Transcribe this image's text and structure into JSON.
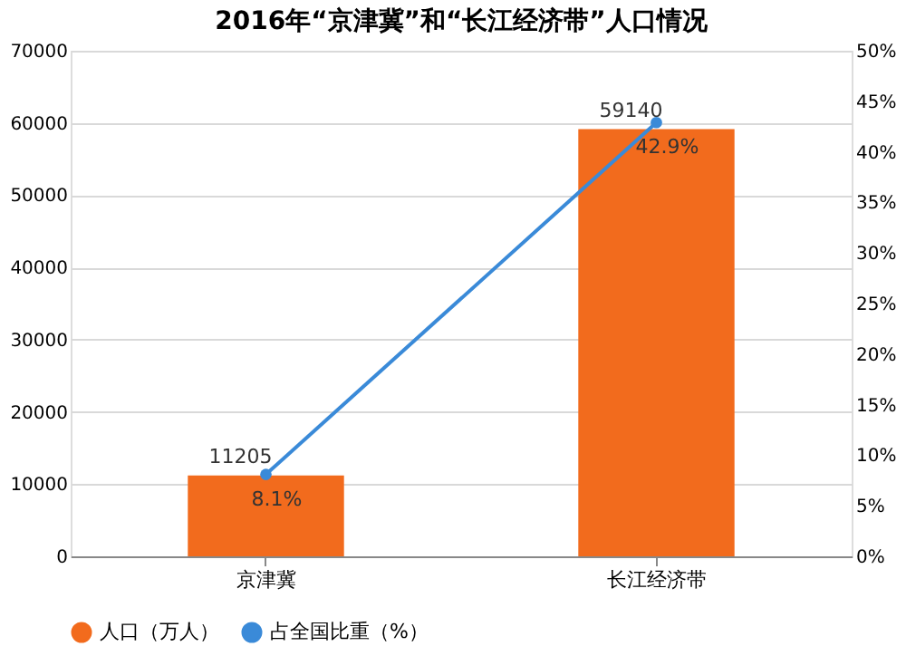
{
  "chart_data": {
    "type": "bar",
    "title": "2016年“京津冀”和“长江经济带”人口情况",
    "categories": [
      "京津冀",
      "长江经济带"
    ],
    "series": [
      {
        "name": "人口（万人）",
        "color": "#f26b1d",
        "values": [
          11205,
          59140
        ],
        "value_labels": [
          "11205",
          "59140"
        ]
      },
      {
        "name": "占全国比重（%）",
        "type": "line",
        "axis": "y2",
        "color": "#3a8ad8",
        "values": [
          8.1,
          42.9
        ],
        "value_labels": [
          "8.1%",
          "42.9%"
        ]
      }
    ],
    "ylim": [
      0,
      70000
    ],
    "yticks": [
      0,
      10000,
      20000,
      30000,
      40000,
      50000,
      60000,
      70000
    ],
    "y2lim": [
      0,
      50
    ],
    "y2ticks": [
      {
        "value": 0,
        "label": "0%"
      },
      {
        "value": 5,
        "label": "5%"
      },
      {
        "value": 10,
        "label": "10%"
      },
      {
        "value": 15,
        "label": "15%"
      },
      {
        "value": 20,
        "label": "20%"
      },
      {
        "value": 25,
        "label": "25%"
      },
      {
        "value": 30,
        "label": "30%"
      },
      {
        "value": 35,
        "label": "35%"
      },
      {
        "value": 40,
        "label": "40%"
      },
      {
        "value": 45,
        "label": "45%"
      },
      {
        "value": 50,
        "label": "50%"
      }
    ],
    "grid": "y",
    "legend": "bottom",
    "marker": "circle"
  }
}
